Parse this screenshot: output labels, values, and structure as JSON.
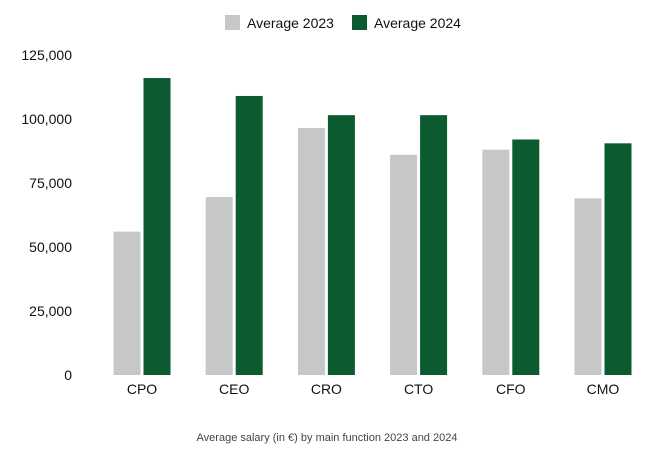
{
  "caption": "Average salary (in €) by main function 2023 and 2024",
  "colors": {
    "series_2023": "#c7c7c7",
    "series_2024": "#0b5a30",
    "axis_text": "#111111",
    "caption_text": "#444444"
  },
  "chart_data": {
    "type": "bar",
    "categories": [
      "CPO",
      "CEO",
      "CRO",
      "CTO",
      "CFO",
      "CMO"
    ],
    "series": [
      {
        "name": "Average 2023",
        "values": [
          56000,
          69500,
          96500,
          86000,
          88000,
          69000
        ]
      },
      {
        "name": "Average 2024",
        "values": [
          116000,
          109000,
          101500,
          101500,
          92000,
          90500
        ]
      }
    ],
    "ylim": [
      0,
      125000
    ],
    "yticks": [
      0,
      25000,
      50000,
      75000,
      100000,
      125000
    ],
    "ytick_labels": [
      "0",
      "25,000",
      "50,000",
      "75,000",
      "100,000",
      "125,000"
    ],
    "grid": false,
    "legend_position": "top-center"
  }
}
